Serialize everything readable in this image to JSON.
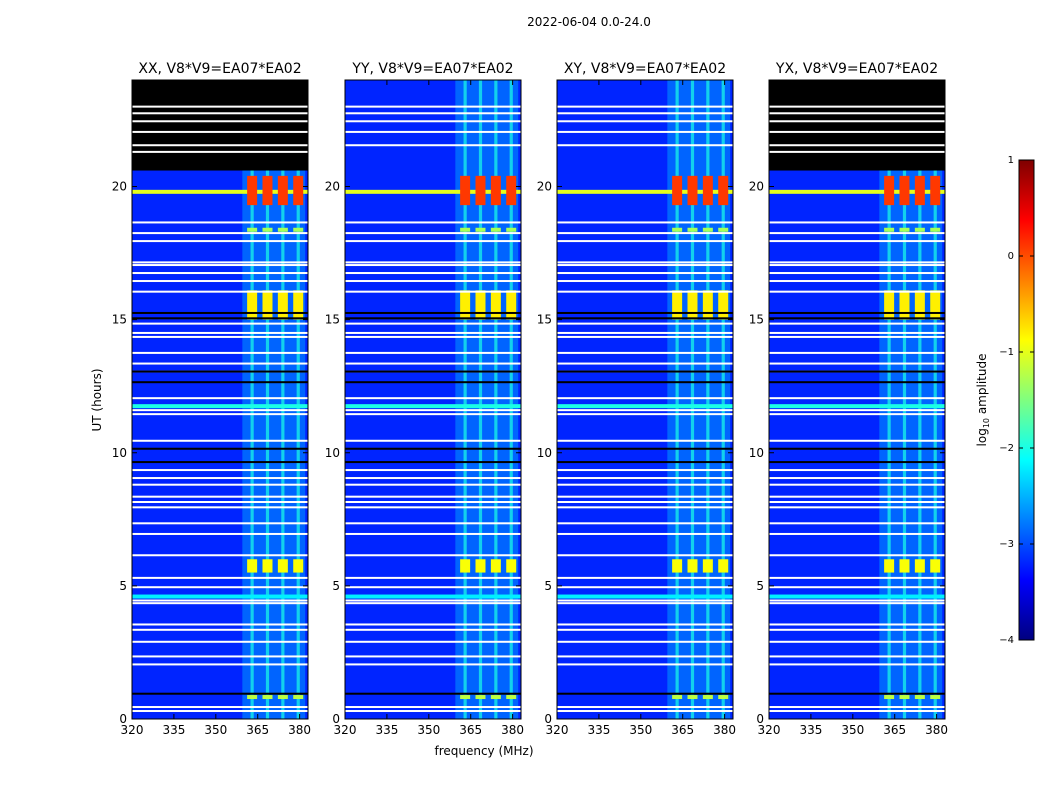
{
  "figure_title": "2022-06-04 0.0-24.0",
  "chart_data": {
    "type": "heatmap",
    "title": "2022-06-04 0.0-24.0",
    "xlabel": "frequency (MHz)",
    "ylabel": "UT (hours)",
    "xlim": [
      320,
      383
    ],
    "ylim": [
      0,
      24
    ],
    "xticks": [
      320,
      335,
      350,
      365,
      380
    ],
    "yticks": [
      0,
      5,
      10,
      15,
      20
    ],
    "colorbar": {
      "label": "log10 amplitude",
      "range": [
        -4,
        1
      ],
      "ticks": [
        1,
        0,
        -1,
        -2,
        -3,
        -4
      ],
      "tick_labels": [
        "1",
        "0",
        "−1",
        "−2",
        "−3",
        "−4"
      ],
      "colormap": "jet"
    },
    "panels": [
      {
        "title": "XX, V8*V9=EA07*EA02",
        "polarization": "XX",
        "empty_after_hour": 20.6
      },
      {
        "title": "YY, V8*V9=EA07*EA02",
        "polarization": "YY",
        "empty_after_hour": null
      },
      {
        "title": "XY, V8*V9=EA07*EA02",
        "polarization": "XY",
        "empty_after_hour": null
      },
      {
        "title": "YX, V8*V9=EA07*EA02",
        "polarization": "YX",
        "empty_after_hour": 20.6
      }
    ],
    "background_log_amplitude": -3.2,
    "rfi_channels_mhz": [
      363,
      368.5,
      374,
      379.5
    ],
    "rfi_band_mhz": [
      359.5,
      382
    ],
    "rfi_time_bursts": [
      {
        "start_hour": 19.3,
        "end_hour": 20.4,
        "log_amplitude": 0.1
      },
      {
        "start_hour": 15.0,
        "end_hour": 16.1,
        "log_amplitude": -0.8
      },
      {
        "start_hour": 5.5,
        "end_hour": 6.0,
        "log_amplitude": -0.9
      },
      {
        "start_hour": 0.75,
        "end_hour": 0.9,
        "log_amplitude": -1.2
      },
      {
        "start_hour": 18.3,
        "end_hour": 18.45,
        "log_amplitude": -1.3
      }
    ],
    "broadband_rfi": [
      {
        "hour": 19.8,
        "log_amplitude": -1.0
      },
      {
        "hour": 11.75,
        "log_amplitude": -2.0
      },
      {
        "hour": 4.6,
        "log_amplitude": -2.2
      }
    ],
    "flagged_hours_white": [
      0.3,
      0.45,
      2.05,
      2.35,
      2.9,
      3.35,
      3.55,
      4.35,
      4.45,
      4.95,
      5.3,
      6.15,
      6.95,
      7.35,
      7.95,
      8.15,
      8.35,
      8.8,
      9.05,
      9.35,
      10.45,
      11.45,
      11.6,
      12.05,
      13.05,
      13.35,
      13.75,
      14.35,
      14.5,
      14.85,
      16.05,
      16.45,
      16.75,
      17.05,
      17.15,
      17.95,
      18.25,
      18.65,
      21.55,
      22.05,
      22.45,
      22.75,
      23.0
    ],
    "flagged_hours_black": [
      0.95,
      9.65,
      10.15,
      12.65,
      13.05,
      15.05,
      15.25
    ]
  }
}
